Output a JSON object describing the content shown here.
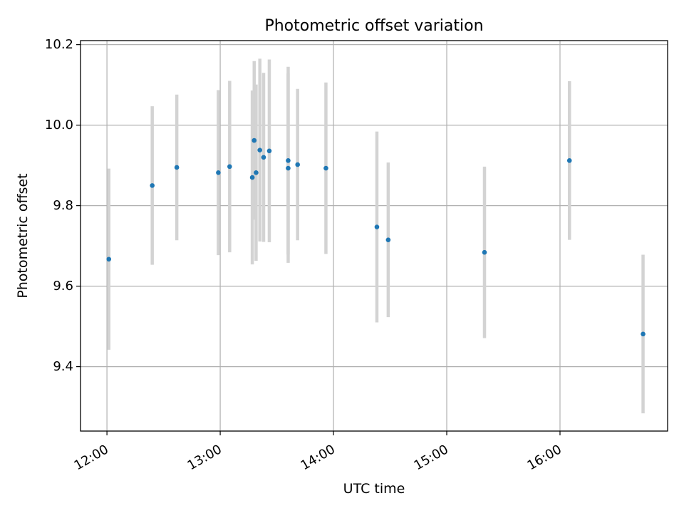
{
  "chart_data": {
    "type": "scatter",
    "title": "Photometric offset variation",
    "xlabel": "UTC time",
    "ylabel": "Photometric offset",
    "grid": true,
    "xlim": [
      "11:46",
      "16:57"
    ],
    "ylim": [
      9.24,
      10.21
    ],
    "x_ticks": [
      "12:00",
      "13:00",
      "14:00",
      "15:00",
      "16:00"
    ],
    "y_ticks": [
      9.4,
      9.6,
      9.8,
      10.0,
      10.2
    ],
    "y_tick_labels": [
      "9.4",
      "9.6",
      "9.8",
      "10.0",
      "10.2"
    ],
    "colors": {
      "points": "#1f77b4",
      "errorbars": "#d3d3d3",
      "grid": "#b0b0b0",
      "axes": "#000000"
    },
    "series": [
      {
        "x": [
          "12:01",
          "12:24",
          "12:37",
          "12:59",
          "13:05",
          "13:17",
          "13:18",
          "13:19",
          "13:21",
          "13:23",
          "13:26",
          "13:36",
          "13:36",
          "13:41",
          "13:56",
          "14:23",
          "14:29",
          "15:20",
          "16:05",
          "16:44"
        ],
        "y": [
          9.667,
          9.85,
          9.895,
          9.882,
          9.897,
          9.87,
          9.962,
          9.882,
          9.938,
          9.92,
          9.936,
          9.893,
          9.912,
          9.902,
          9.893,
          9.747,
          9.715,
          9.684,
          9.912,
          9.481
        ],
        "yerr": [
          0.225,
          0.197,
          0.181,
          0.205,
          0.213,
          0.216,
          0.197,
          0.219,
          0.227,
          0.21,
          0.227,
          0.235,
          0.233,
          0.188,
          0.213,
          0.237,
          0.192,
          0.213,
          0.197,
          0.197
        ]
      }
    ]
  }
}
